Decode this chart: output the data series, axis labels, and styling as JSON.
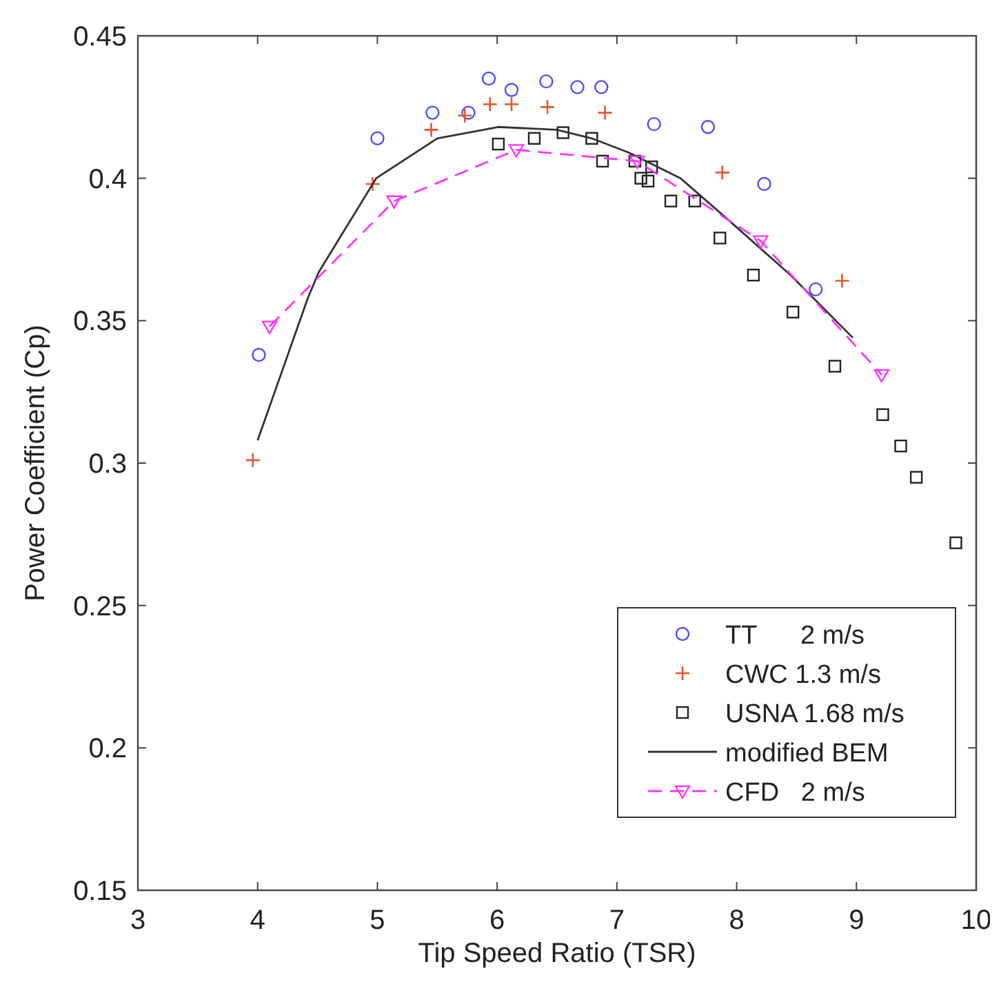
{
  "chart_data": {
    "type": "scatter",
    "xlabel": "Tip Speed Ratio (TSR)",
    "ylabel": "Power Coefficient (Cp)",
    "xlim": [
      3,
      10
    ],
    "ylim": [
      0.15,
      0.45
    ],
    "xticks": [
      3,
      4,
      5,
      6,
      7,
      8,
      9,
      10
    ],
    "yticks": [
      0.15,
      0.2,
      0.25,
      0.3,
      0.35,
      0.4,
      0.45
    ],
    "grid": false,
    "legend": "bottom right",
    "series": [
      {
        "name": "TT      2 m/s",
        "marker": "circle",
        "color": "#4d4dff",
        "x": [
          4.01,
          5.0,
          5.46,
          5.76,
          5.93,
          6.12,
          6.41,
          6.67,
          6.87,
          7.31,
          7.76,
          8.23,
          8.66
        ],
        "values": [
          0.338,
          0.414,
          0.423,
          0.423,
          0.435,
          0.431,
          0.434,
          0.432,
          0.432,
          0.419,
          0.418,
          0.398,
          0.361
        ]
      },
      {
        "name": "CWC 1.3 m/s",
        "marker": "cross",
        "color": "#e8562a",
        "x": [
          3.96,
          4.96,
          5.45,
          5.73,
          5.94,
          6.12,
          6.42,
          6.9,
          7.88,
          8.88
        ],
        "values": [
          0.301,
          0.398,
          0.417,
          0.422,
          0.426,
          0.426,
          0.425,
          0.423,
          0.402,
          0.364
        ]
      },
      {
        "name": "USNA 1.68 m/s",
        "marker": "square",
        "color": "#222222",
        "x": [
          6.01,
          6.31,
          6.55,
          6.79,
          6.88,
          7.15,
          7.29,
          7.2,
          7.26,
          7.45,
          7.65,
          7.86,
          8.14,
          8.47,
          8.82,
          9.22,
          9.37,
          9.5,
          9.83
        ],
        "values": [
          0.412,
          0.414,
          0.416,
          0.414,
          0.406,
          0.406,
          0.404,
          0.4,
          0.399,
          0.392,
          0.392,
          0.379,
          0.366,
          0.353,
          0.334,
          0.317,
          0.306,
          0.295,
          0.272
        ]
      },
      {
        "name": "modified BEM",
        "type": "line",
        "marker": "none",
        "line_style": "solid",
        "color": "#333333",
        "x": [
          4.0,
          4.42,
          4.51,
          4.99,
          5.5,
          6.01,
          6.5,
          6.79,
          7.1,
          7.53,
          7.94,
          8.45,
          8.97
        ],
        "values": [
          0.308,
          0.358,
          0.367,
          0.4,
          0.414,
          0.418,
          0.417,
          0.414,
          0.409,
          0.4,
          0.385,
          0.366,
          0.344
        ]
      },
      {
        "name": "CFD   2 m/s",
        "type": "line",
        "marker": "triangle",
        "line_style": "dashed",
        "color": "#ff33ff",
        "x": [
          4.1,
          5.14,
          6.16,
          7.17,
          8.2,
          9.21
        ],
        "values": [
          0.348,
          0.392,
          0.41,
          0.406,
          0.378,
          0.331
        ]
      }
    ]
  }
}
